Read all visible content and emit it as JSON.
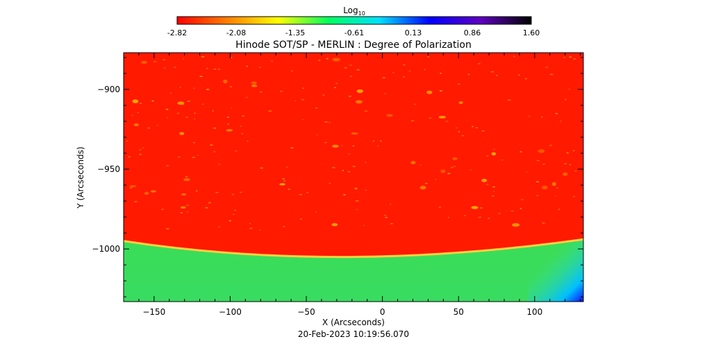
{
  "colorbar": {
    "label_base": "Log",
    "label_sub": "10",
    "ticks": [
      "-2.82",
      "-2.08",
      "-1.35",
      "-0.61",
      "0.13",
      "0.86",
      "1.60"
    ],
    "stops": [
      "#ff0000",
      "#ff8000",
      "#ffff00",
      "#00ff60",
      "#00e0ff",
      "#0000ff",
      "#6000c0",
      "#000000"
    ]
  },
  "chart_data": {
    "type": "heatmap",
    "title": "Hinode SOT/SP - MERLIN : Degree of Polarization",
    "xlabel": "X (Arcseconds)",
    "ylabel": "Y (Arcseconds)",
    "xlim": [
      -170,
      132
    ],
    "ylim": [
      -1033,
      -877
    ],
    "xticks": [
      -150,
      -100,
      -50,
      0,
      50,
      100
    ],
    "xtick_labels": [
      "−150",
      "−100",
      "−50",
      "0",
      "50",
      "100"
    ],
    "yticks": [
      -900,
      -950,
      -1000
    ],
    "ytick_labels": [
      "−900",
      "−950",
      "−1000"
    ],
    "limb_y": [
      -995,
      -1005,
      -994
    ],
    "disk_color": "#ff1a00",
    "offlimb_color": "#3fe030",
    "timestamp": "20-Feb-2023 10:19:56.070"
  }
}
